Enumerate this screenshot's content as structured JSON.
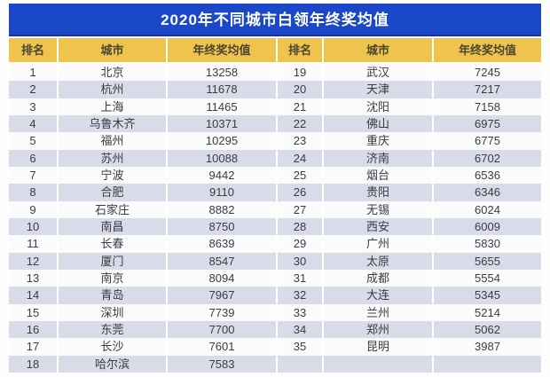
{
  "page": {
    "title": "2020年不同城市白领年终奖均值"
  },
  "table": {
    "headers": [
      "排名",
      "城市",
      "年终奖均值",
      "排名",
      "城市",
      "年终奖均值"
    ],
    "rows": [
      [
        "1",
        "北京",
        "13258",
        "19",
        "武汉",
        "7245"
      ],
      [
        "2",
        "杭州",
        "11678",
        "20",
        "天津",
        "7217"
      ],
      [
        "3",
        "上海",
        "11465",
        "21",
        "沈阳",
        "7158"
      ],
      [
        "4",
        "乌鲁木齐",
        "10371",
        "22",
        "佛山",
        "6975"
      ],
      [
        "5",
        "福州",
        "10295",
        "23",
        "重庆",
        "6775"
      ],
      [
        "6",
        "苏州",
        "10088",
        "24",
        "济南",
        "6702"
      ],
      [
        "7",
        "宁波",
        "9442",
        "25",
        "烟台",
        "6536"
      ],
      [
        "8",
        "合肥",
        "9110",
        "26",
        "贵阳",
        "6346"
      ],
      [
        "9",
        "石家庄",
        "8882",
        "27",
        "无锡",
        "6024"
      ],
      [
        "10",
        "南昌",
        "8750",
        "28",
        "西安",
        "6009"
      ],
      [
        "11",
        "长春",
        "8639",
        "29",
        "广州",
        "5830"
      ],
      [
        "12",
        "厦门",
        "8547",
        "30",
        "太原",
        "5655"
      ],
      [
        "13",
        "南京",
        "8094",
        "31",
        "成都",
        "5554"
      ],
      [
        "14",
        "青岛",
        "7967",
        "32",
        "大连",
        "5345"
      ],
      [
        "15",
        "深圳",
        "7739",
        "33",
        "兰州",
        "5214"
      ],
      [
        "16",
        "东莞",
        "7700",
        "34",
        "郑州",
        "5062"
      ],
      [
        "17",
        "长沙",
        "7601",
        "35",
        "昆明",
        "3987"
      ],
      [
        "18",
        "哈尔滨",
        "7583",
        "",
        "",
        ""
      ]
    ]
  },
  "colors": {
    "title_bar_bg": "#1b47c9",
    "title_text": "#ffffff",
    "header_bg": "#eec44f",
    "header_text": "#4b4531",
    "row_bg": "#fbfbfc",
    "row_alt_bg": "#d8dbe8",
    "cell_text": "#3b3b44"
  },
  "chart_data": {
    "type": "table",
    "title": "2020年不同城市白领年终奖均值",
    "columns": [
      "排名",
      "城市",
      "年终奖均值"
    ],
    "records": [
      {
        "rank": 1,
        "city": "北京",
        "value": 13258
      },
      {
        "rank": 2,
        "city": "杭州",
        "value": 11678
      },
      {
        "rank": 3,
        "city": "上海",
        "value": 11465
      },
      {
        "rank": 4,
        "city": "乌鲁木齐",
        "value": 10371
      },
      {
        "rank": 5,
        "city": "福州",
        "value": 10295
      },
      {
        "rank": 6,
        "city": "苏州",
        "value": 10088
      },
      {
        "rank": 7,
        "city": "宁波",
        "value": 9442
      },
      {
        "rank": 8,
        "city": "合肥",
        "value": 9110
      },
      {
        "rank": 9,
        "city": "石家庄",
        "value": 8882
      },
      {
        "rank": 10,
        "city": "南昌",
        "value": 8750
      },
      {
        "rank": 11,
        "city": "长春",
        "value": 8639
      },
      {
        "rank": 12,
        "city": "厦门",
        "value": 8547
      },
      {
        "rank": 13,
        "city": "南京",
        "value": 8094
      },
      {
        "rank": 14,
        "city": "青岛",
        "value": 7967
      },
      {
        "rank": 15,
        "city": "深圳",
        "value": 7739
      },
      {
        "rank": 16,
        "city": "东莞",
        "value": 7700
      },
      {
        "rank": 17,
        "city": "长沙",
        "value": 7601
      },
      {
        "rank": 18,
        "city": "哈尔滨",
        "value": 7583
      },
      {
        "rank": 19,
        "city": "武汉",
        "value": 7245
      },
      {
        "rank": 20,
        "city": "天津",
        "value": 7217
      },
      {
        "rank": 21,
        "city": "沈阳",
        "value": 7158
      },
      {
        "rank": 22,
        "city": "佛山",
        "value": 6975
      },
      {
        "rank": 23,
        "city": "重庆",
        "value": 6775
      },
      {
        "rank": 24,
        "city": "济南",
        "value": 6702
      },
      {
        "rank": 25,
        "city": "烟台",
        "value": 6536
      },
      {
        "rank": 26,
        "city": "贵阳",
        "value": 6346
      },
      {
        "rank": 27,
        "city": "无锡",
        "value": 6024
      },
      {
        "rank": 28,
        "city": "西安",
        "value": 6009
      },
      {
        "rank": 29,
        "city": "广州",
        "value": 5830
      },
      {
        "rank": 30,
        "city": "太原",
        "value": 5655
      },
      {
        "rank": 31,
        "city": "成都",
        "value": 5554
      },
      {
        "rank": 32,
        "city": "大连",
        "value": 5345
      },
      {
        "rank": 33,
        "city": "兰州",
        "value": 5214
      },
      {
        "rank": 34,
        "city": "郑州",
        "value": 5062
      },
      {
        "rank": 35,
        "city": "昆明",
        "value": 3987
      }
    ]
  }
}
